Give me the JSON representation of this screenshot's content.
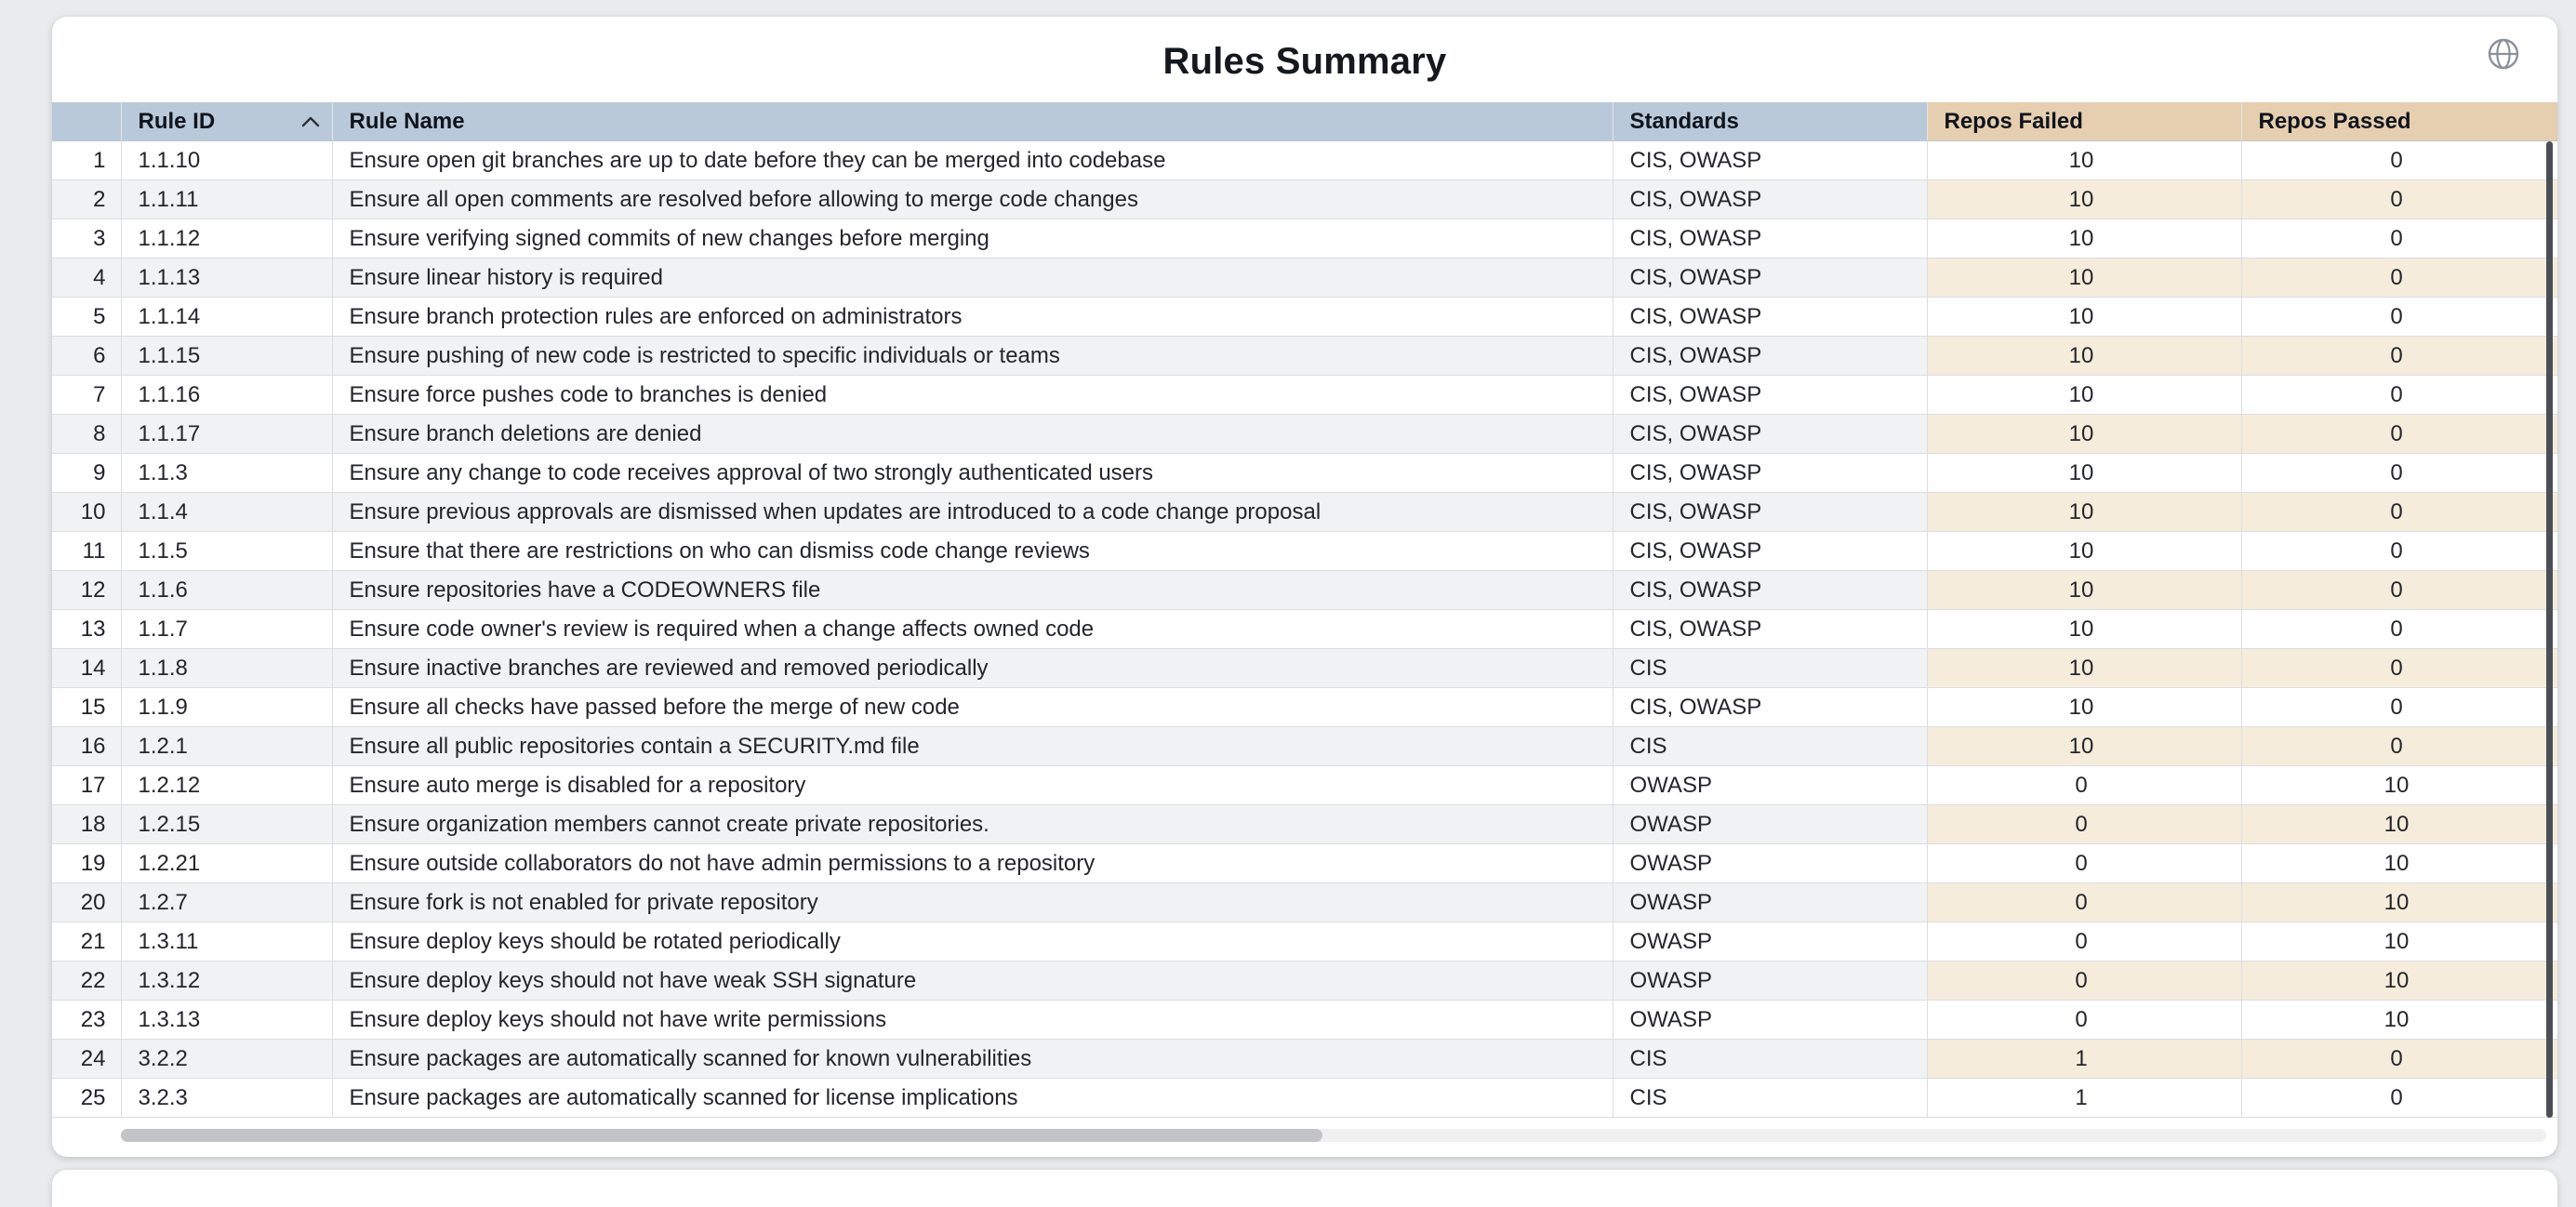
{
  "title": "Rules Summary",
  "colors": {
    "header_blue": "#b9c9da",
    "header_tan": "#e5cfb0",
    "stripe_gray": "#f1f2f3",
    "stripe_tan": "#f6ecdc",
    "page_background": "#e9ebee"
  },
  "icons": {
    "globe": "globe-icon",
    "sort_ascending": "chevron-up-icon"
  },
  "table": {
    "columns": [
      {
        "key": "rule_id",
        "label": "Rule ID",
        "sort": "asc"
      },
      {
        "key": "rule_name",
        "label": "Rule Name"
      },
      {
        "key": "standards",
        "label": "Standards"
      },
      {
        "key": "repos_failed",
        "label": "Repos Failed"
      },
      {
        "key": "repos_passed",
        "label": "Repos Passed"
      }
    ],
    "rows": [
      {
        "num": 1,
        "rule_id": "1.1.10",
        "rule_name": "Ensure open git branches are up to date before they can be merged into codebase",
        "standards": "CIS, OWASP",
        "repos_failed": 10,
        "repos_passed": 0
      },
      {
        "num": 2,
        "rule_id": "1.1.11",
        "rule_name": "Ensure all open comments are resolved before allowing to merge code changes",
        "standards": "CIS, OWASP",
        "repos_failed": 10,
        "repos_passed": 0
      },
      {
        "num": 3,
        "rule_id": "1.1.12",
        "rule_name": "Ensure verifying signed commits of new changes before merging",
        "standards": "CIS, OWASP",
        "repos_failed": 10,
        "repos_passed": 0
      },
      {
        "num": 4,
        "rule_id": "1.1.13",
        "rule_name": "Ensure linear history is required",
        "standards": "CIS, OWASP",
        "repos_failed": 10,
        "repos_passed": 0
      },
      {
        "num": 5,
        "rule_id": "1.1.14",
        "rule_name": "Ensure branch protection rules are enforced on administrators",
        "standards": "CIS, OWASP",
        "repos_failed": 10,
        "repos_passed": 0
      },
      {
        "num": 6,
        "rule_id": "1.1.15",
        "rule_name": "Ensure pushing of new code is restricted to specific individuals or teams",
        "standards": "CIS, OWASP",
        "repos_failed": 10,
        "repos_passed": 0
      },
      {
        "num": 7,
        "rule_id": "1.1.16",
        "rule_name": "Ensure force pushes code to branches is denied",
        "standards": "CIS, OWASP",
        "repos_failed": 10,
        "repos_passed": 0
      },
      {
        "num": 8,
        "rule_id": "1.1.17",
        "rule_name": "Ensure branch deletions are denied",
        "standards": "CIS, OWASP",
        "repos_failed": 10,
        "repos_passed": 0
      },
      {
        "num": 9,
        "rule_id": "1.1.3",
        "rule_name": "Ensure any change to code receives approval of two strongly authenticated users",
        "standards": "CIS, OWASP",
        "repos_failed": 10,
        "repos_passed": 0
      },
      {
        "num": 10,
        "rule_id": "1.1.4",
        "rule_name": "Ensure previous approvals are dismissed when updates are introduced to a code change proposal",
        "standards": "CIS, OWASP",
        "repos_failed": 10,
        "repos_passed": 0
      },
      {
        "num": 11,
        "rule_id": "1.1.5",
        "rule_name": "Ensure that there are restrictions on who can dismiss code change reviews",
        "standards": "CIS, OWASP",
        "repos_failed": 10,
        "repos_passed": 0
      },
      {
        "num": 12,
        "rule_id": "1.1.6",
        "rule_name": "Ensure repositories have a CODEOWNERS file",
        "standards": "CIS, OWASP",
        "repos_failed": 10,
        "repos_passed": 0
      },
      {
        "num": 13,
        "rule_id": "1.1.7",
        "rule_name": "Ensure code owner's review is required when a change affects owned code",
        "standards": "CIS, OWASP",
        "repos_failed": 10,
        "repos_passed": 0
      },
      {
        "num": 14,
        "rule_id": "1.1.8",
        "rule_name": "Ensure inactive branches are reviewed and removed periodically",
        "standards": "CIS",
        "repos_failed": 10,
        "repos_passed": 0
      },
      {
        "num": 15,
        "rule_id": "1.1.9",
        "rule_name": "Ensure all checks have passed before the merge of new code",
        "standards": "CIS, OWASP",
        "repos_failed": 10,
        "repos_passed": 0
      },
      {
        "num": 16,
        "rule_id": "1.2.1",
        "rule_name": "Ensure all public repositories contain a SECURITY.md file",
        "standards": "CIS",
        "repos_failed": 10,
        "repos_passed": 0
      },
      {
        "num": 17,
        "rule_id": "1.2.12",
        "rule_name": "Ensure auto merge is disabled for a repository",
        "standards": "OWASP",
        "repos_failed": 0,
        "repos_passed": 10
      },
      {
        "num": 18,
        "rule_id": "1.2.15",
        "rule_name": "Ensure organization members cannot create private repositories.",
        "standards": "OWASP",
        "repos_failed": 0,
        "repos_passed": 10
      },
      {
        "num": 19,
        "rule_id": "1.2.21",
        "rule_name": "Ensure outside collaborators do not have admin permissions to a repository",
        "standards": "OWASP",
        "repos_failed": 0,
        "repos_passed": 10
      },
      {
        "num": 20,
        "rule_id": "1.2.7",
        "rule_name": "Ensure fork is not enabled for private repository",
        "standards": "OWASP",
        "repos_failed": 0,
        "repos_passed": 10
      },
      {
        "num": 21,
        "rule_id": "1.3.11",
        "rule_name": "Ensure deploy keys should be rotated periodically",
        "standards": "OWASP",
        "repos_failed": 0,
        "repos_passed": 10
      },
      {
        "num": 22,
        "rule_id": "1.3.12",
        "rule_name": "Ensure deploy keys should not have weak SSH signature",
        "standards": "OWASP",
        "repos_failed": 0,
        "repos_passed": 10
      },
      {
        "num": 23,
        "rule_id": "1.3.13",
        "rule_name": "Ensure deploy keys should not have write permissions",
        "standards": "OWASP",
        "repos_failed": 0,
        "repos_passed": 10
      },
      {
        "num": 24,
        "rule_id": "3.2.2",
        "rule_name": "Ensure packages are automatically scanned for known vulnerabilities",
        "standards": "CIS",
        "repos_failed": 1,
        "repos_passed": 0
      },
      {
        "num": 25,
        "rule_id": "3.2.3",
        "rule_name": "Ensure packages are automatically scanned for license implications",
        "standards": "CIS",
        "repos_failed": 1,
        "repos_passed": 0
      }
    ]
  }
}
